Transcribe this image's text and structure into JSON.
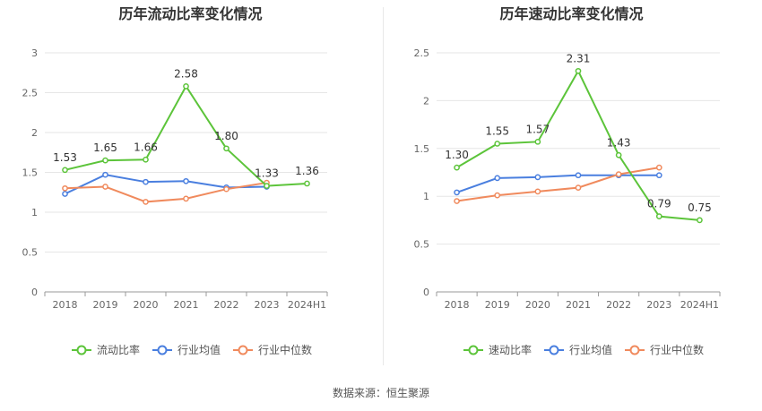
{
  "footer": {
    "source": "数据来源：恒生聚源"
  },
  "chart_data": [
    {
      "type": "line",
      "title": "历年流动比率变化情况",
      "categories": [
        "2018",
        "2019",
        "2020",
        "2021",
        "2022",
        "2023",
        "2024H1"
      ],
      "ylim": [
        0,
        3
      ],
      "yticks": [
        "0",
        "0.5",
        "1",
        "1.5",
        "2",
        "2.5",
        "3"
      ],
      "ytick_values": [
        0,
        0.5,
        1,
        1.5,
        2,
        2.5,
        3
      ],
      "series": [
        {
          "name": "流动比率",
          "color": "#5cc43a",
          "values": [
            1.53,
            1.65,
            1.66,
            2.58,
            1.8,
            1.33,
            1.36
          ],
          "labels": [
            "1.53",
            "1.65",
            "1.66",
            "2.58",
            "1.80",
            "1.33",
            "1.36"
          ]
        },
        {
          "name": "行业均值",
          "color": "#4a7fdf",
          "values": [
            1.23,
            1.47,
            1.38,
            1.39,
            1.31,
            1.32,
            null
          ]
        },
        {
          "name": "行业中位数",
          "color": "#f08a5d",
          "values": [
            1.3,
            1.32,
            1.13,
            1.17,
            1.29,
            1.37,
            null
          ]
        }
      ],
      "legend": [
        "流动比率",
        "行业均值",
        "行业中位数"
      ],
      "grid": true,
      "legend_position": "bottom"
    },
    {
      "type": "line",
      "title": "历年速动比率变化情况",
      "categories": [
        "2018",
        "2019",
        "2020",
        "2021",
        "2022",
        "2023",
        "2024H1"
      ],
      "ylim": [
        0,
        2.5
      ],
      "yticks": [
        "0",
        "0.5",
        "1",
        "1.5",
        "2",
        "2.5"
      ],
      "ytick_values": [
        0,
        0.5,
        1,
        1.5,
        2,
        2.5
      ],
      "series": [
        {
          "name": "速动比率",
          "color": "#5cc43a",
          "values": [
            1.3,
            1.55,
            1.57,
            2.31,
            1.43,
            0.79,
            0.75
          ],
          "labels": [
            "1.30",
            "1.55",
            "1.57",
            "2.31",
            "1.43",
            "0.79",
            "0.75"
          ]
        },
        {
          "name": "行业均值",
          "color": "#4a7fdf",
          "values": [
            1.04,
            1.19,
            1.2,
            1.22,
            1.22,
            1.22,
            null
          ]
        },
        {
          "name": "行业中位数",
          "color": "#f08a5d",
          "values": [
            0.95,
            1.01,
            1.05,
            1.09,
            1.23,
            1.3,
            null
          ]
        }
      ],
      "legend": [
        "速动比率",
        "行业均值",
        "行业中位数"
      ],
      "grid": true,
      "legend_position": "bottom"
    }
  ]
}
